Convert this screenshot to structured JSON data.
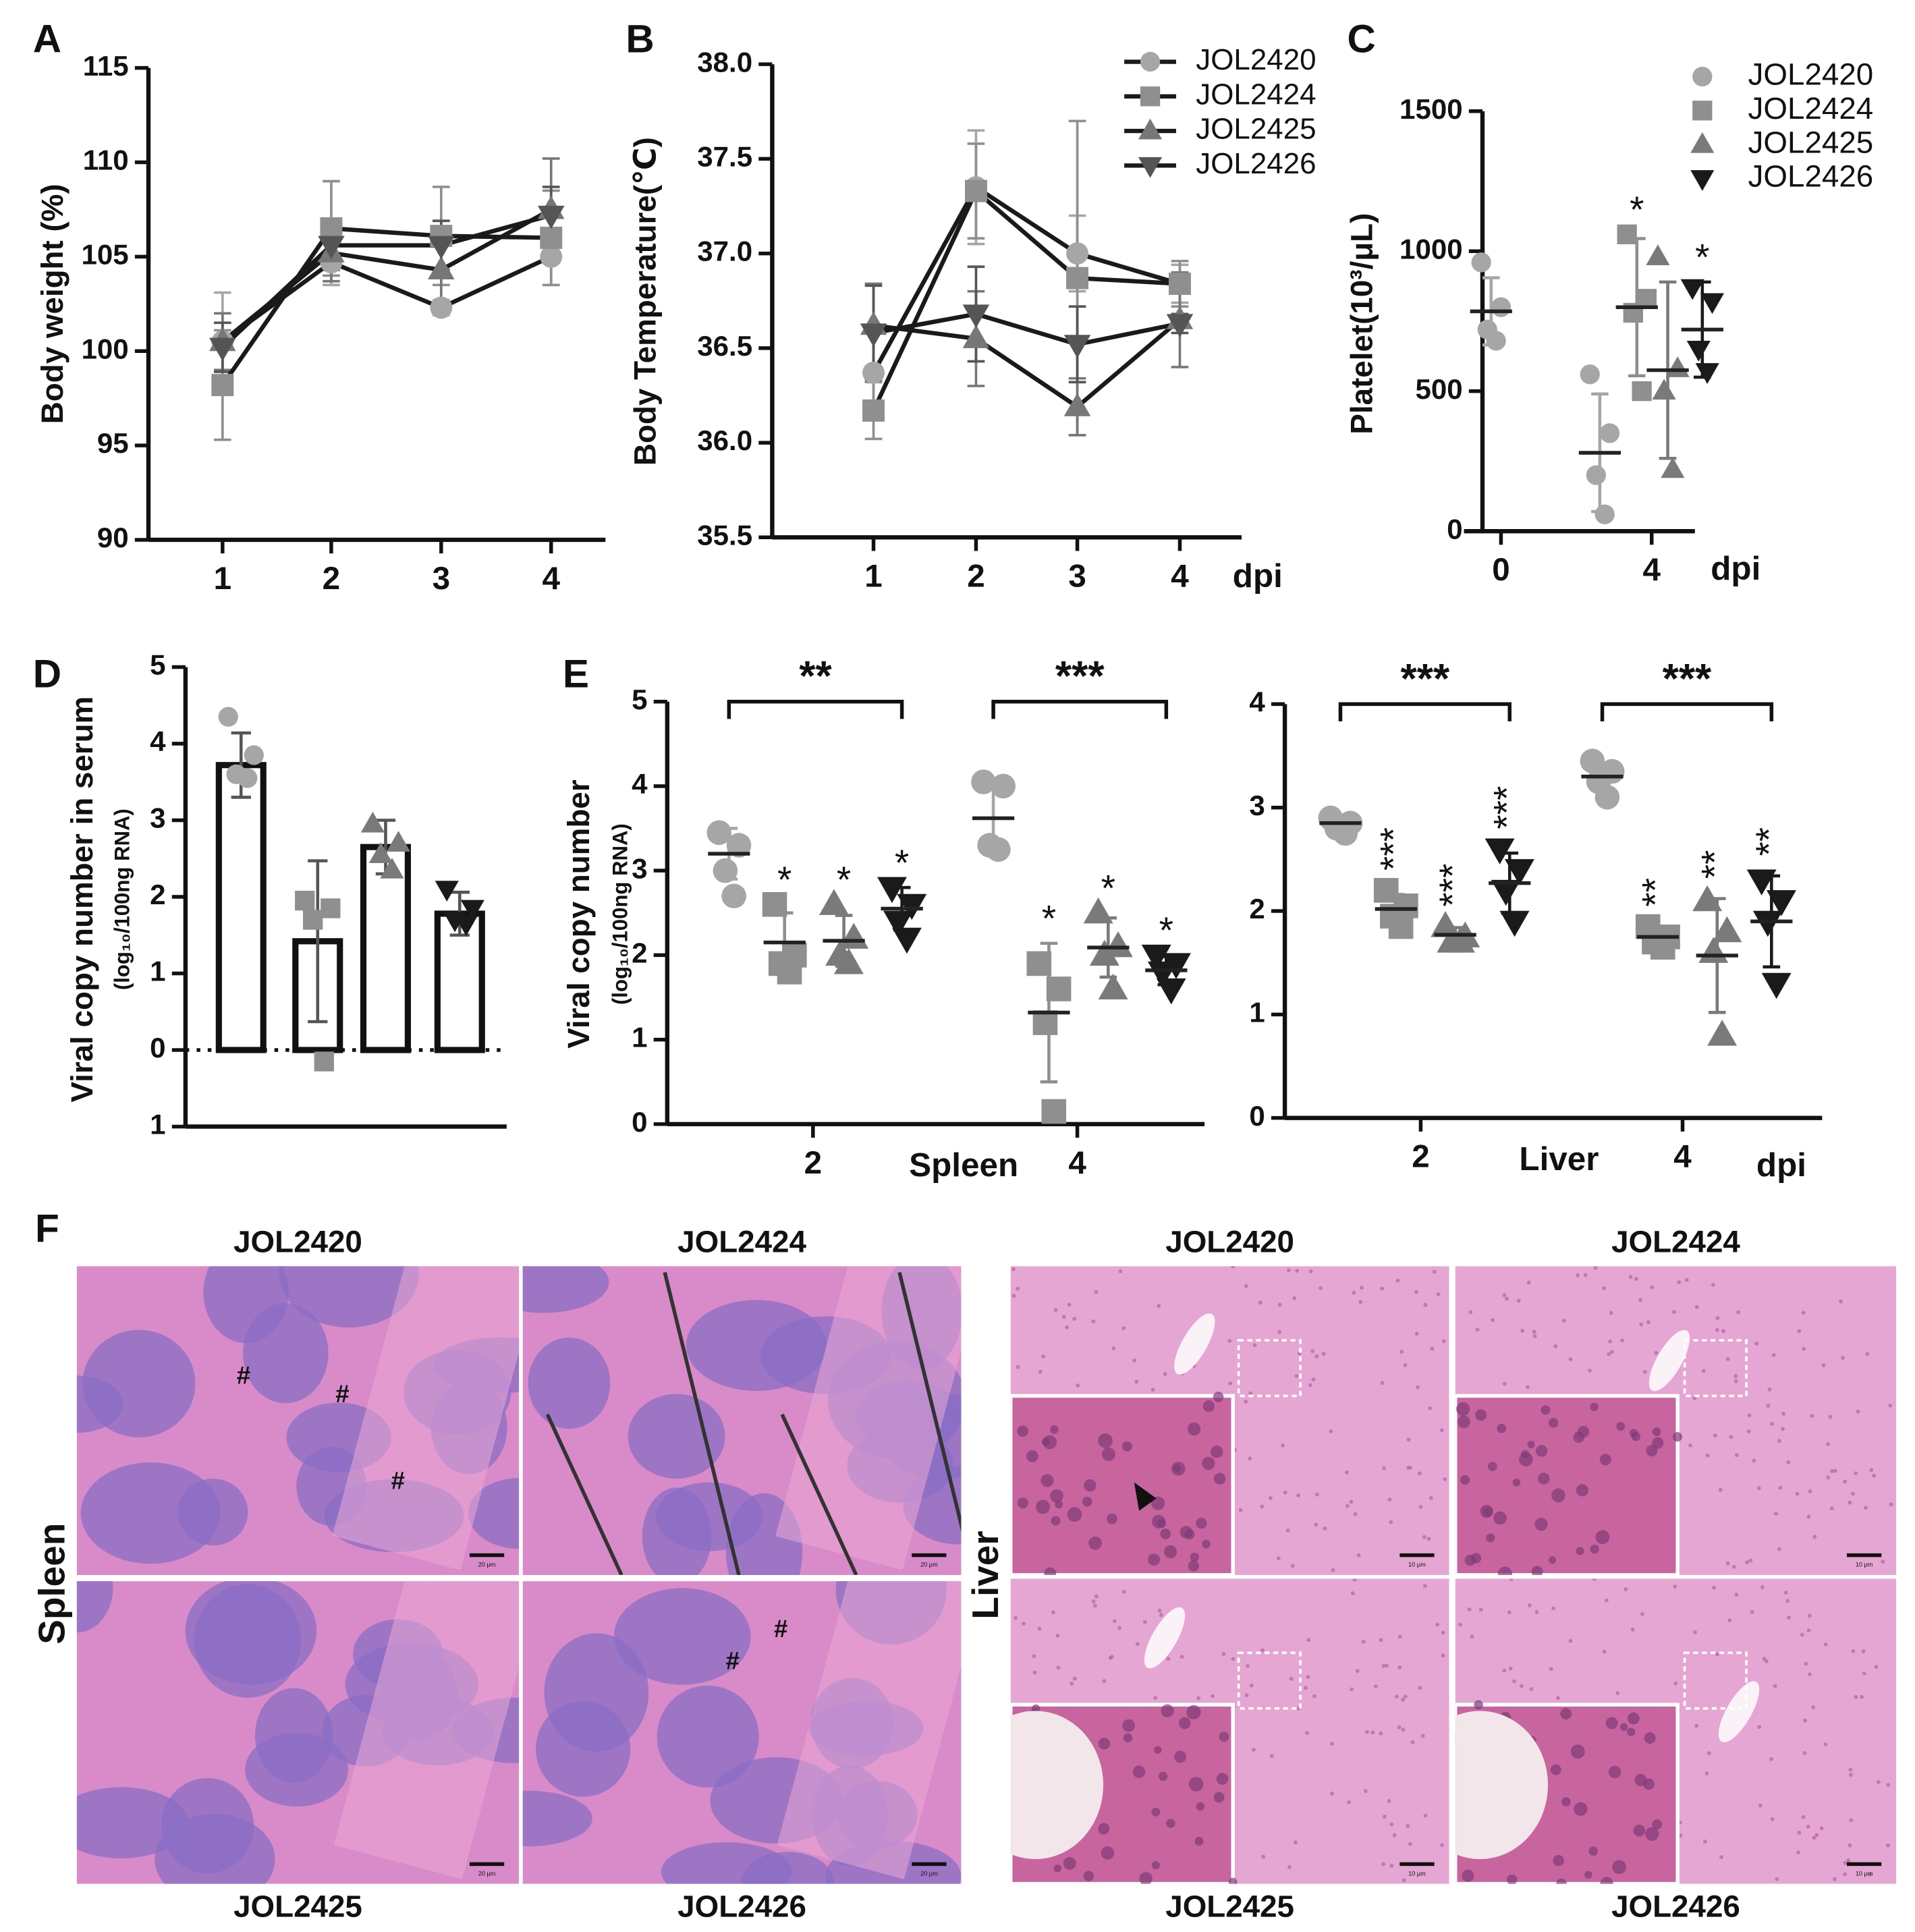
{
  "chart_data": [
    {
      "type": "line",
      "label": "A",
      "ylabel": "Body weight (%)",
      "categories": [
        "1",
        "2",
        "3",
        "4"
      ],
      "ylim": [
        90,
        115
      ],
      "yticks": [
        90,
        95,
        100,
        105,
        110,
        115
      ],
      "series": [
        {
          "color": "#a6a6a6",
          "marker": "circle",
          "values": [
            100.5,
            104.7,
            102.3,
            105.0
          ],
          "errors": [
            2.6,
            1.2,
            0.4,
            1.5
          ]
        },
        {
          "color": "#8f8f8f",
          "marker": "square",
          "values": [
            98.2,
            106.5,
            106.1,
            106.0
          ],
          "errors": [
            2.9,
            2.5,
            2.6,
            2.5
          ]
        },
        {
          "color": "#777777",
          "marker": "triangle",
          "values": [
            100.5,
            105.2,
            104.3,
            107.5
          ],
          "errors": [
            1.5,
            1.5,
            1.8,
            2.7
          ]
        },
        {
          "color": "#555555",
          "marker": "triangle-down",
          "values": [
            100.2,
            105.6,
            105.6,
            107.2
          ],
          "errors": [
            1.3,
            1.3,
            1.3,
            1.5
          ]
        }
      ]
    },
    {
      "type": "line",
      "label": "B",
      "ylabel": "Body Temperature(℃)",
      "xlabel": "dpi",
      "categories": [
        "1",
        "2",
        "3",
        "4"
      ],
      "ylim": [
        35.5,
        38.0
      ],
      "yticks": [
        35.5,
        {
          "value": 36,
          "label": "36.0"
        },
        36.5,
        {
          "value": 37,
          "label": "37.0"
        },
        37.5,
        {
          "value": 38,
          "label": "38.0"
        }
      ],
      "series": [
        {
          "name": "JOL2420",
          "color": "#a6a6a6",
          "marker": "circle",
          "values": [
            36.37,
            37.35,
            37.0,
            36.84
          ],
          "errors": [
            0.25,
            0.3,
            0.2,
            0.1
          ]
        },
        {
          "name": "JOL2424",
          "color": "#8f8f8f",
          "marker": "square",
          "values": [
            36.17,
            37.33,
            36.87,
            36.84
          ],
          "errors": [
            0.15,
            0.25,
            0.83,
            0.12
          ]
        },
        {
          "name": "JOL2425",
          "color": "#777777",
          "marker": "triangle",
          "values": [
            36.62,
            36.55,
            36.19,
            36.65
          ],
          "errors": [
            0.22,
            0.25,
            0.15,
            0.25
          ]
        },
        {
          "name": "JOL2426",
          "color": "#555555",
          "marker": "triangle-down",
          "values": [
            36.58,
            36.68,
            36.52,
            36.63
          ],
          "errors": [
            0.25,
            0.25,
            0.2,
            0.05
          ]
        }
      ]
    },
    {
      "type": "scatter",
      "label": "C",
      "ylabel": "Platelet(10³/μL)",
      "xlabel": "dpi",
      "categories": [
        "0",
        "4"
      ],
      "ylim": [
        0,
        1500
      ],
      "yticks": [
        0,
        500,
        1000,
        1500
      ],
      "series": [
        {
          "name": "JOL2420",
          "color": "#a6a6a6",
          "marker": "circle",
          "values": [
            [
              960,
              800,
              720,
              680
            ],
            [
              560,
              350,
              200,
              60
            ]
          ],
          "means": [
            785,
            280
          ],
          "sd": [
            120,
            210
          ]
        },
        {
          "name": "JOL2424",
          "color": "#8f8f8f",
          "marker": "square",
          "values": [
            null,
            [
              1060,
              830,
              780,
              500
            ]
          ],
          "means": [
            null,
            800
          ],
          "sd": [
            null,
            245
          ],
          "annotations": [
            null,
            "*"
          ]
        },
        {
          "name": "JOL2425",
          "color": "#7a7a7a",
          "marker": "triangle",
          "values": [
            null,
            [
              980,
              580,
              500,
              220
            ]
          ],
          "means": [
            null,
            575
          ],
          "sd": [
            null,
            315
          ]
        },
        {
          "name": "JOL2426",
          "color": "#1a1a1a",
          "marker": "triangle-down",
          "values": [
            null,
            [
              870,
              820,
              650,
              570
            ]
          ],
          "means": [
            null,
            720
          ],
          "sd": [
            null,
            170
          ],
          "annotations": [
            null,
            "*"
          ]
        }
      ]
    },
    {
      "type": "bar",
      "label": "D",
      "ylabel": "Viral copy number in serum",
      "ylabel_sub": "(log₁₀/100ng RNA)",
      "categories": [
        null,
        null,
        null,
        null
      ],
      "ylim": [
        -1,
        5
      ],
      "yticks": [
        {
          "value": -1,
          "label": "1"
        },
        0,
        1,
        2,
        3,
        4,
        5
      ],
      "values": [
        3.72,
        1.42,
        2.65,
        1.78
      ],
      "errors": [
        0.42,
        1.05,
        0.35,
        0.28
      ],
      "points": [
        [
          4.35,
          3.85,
          3.6,
          3.55
        ],
        [
          1.95,
          1.85,
          1.7,
          -0.15
        ],
        [
          2.95,
          2.7,
          2.55,
          2.35
        ],
        [
          2.1,
          1.85,
          1.7,
          1.65
        ]
      ],
      "colors": [
        "#a6a6a6",
        "#8f8f8f",
        "#7a7a7a",
        "#1a1a1a"
      ]
    },
    {
      "type": "scatter",
      "label": "E",
      "ylabel": "Viral copy number",
      "ylabel_sub": "(log₁₀/100ng RNA)",
      "xlabel": "Spleen",
      "categories": [
        "2",
        "4"
      ],
      "ylim": [
        0,
        5
      ],
      "yticks": [
        0,
        1,
        2,
        3,
        4,
        5
      ],
      "brackets": [
        "**",
        "***"
      ],
      "series": [
        {
          "color": "#a6a6a6",
          "marker": "circle",
          "values": [
            [
              3.45,
              3.3,
              3.0,
              2.7
            ],
            [
              4.05,
              4.0,
              3.3,
              3.25
            ]
          ],
          "means": [
            3.2,
            3.62
          ],
          "sd": [
            0.3,
            0.42
          ]
        },
        {
          "color": "#8f8f8f",
          "marker": "square",
          "values": [
            [
              2.6,
              2.0,
              1.9,
              1.8
            ],
            [
              1.9,
              1.6,
              1.2,
              0.15
            ]
          ],
          "means": [
            2.15,
            1.32
          ],
          "sd": [
            0.35,
            0.82
          ],
          "annotations": [
            "*",
            "*"
          ]
        },
        {
          "color": "#7a7a7a",
          "marker": "triangle",
          "values": [
            [
              2.6,
              2.2,
              2.0,
              1.9
            ],
            [
              2.5,
              2.1,
              2.0,
              1.6
            ]
          ],
          "means": [
            2.17,
            2.09
          ],
          "sd": [
            0.3,
            0.35
          ],
          "annotations": [
            "*",
            "*"
          ]
        },
        {
          "color": "#1a1a1a",
          "marker": "triangle-down",
          "values": [
            [
              2.8,
              2.6,
              2.4,
              2.2
            ],
            [
              2.0,
              1.9,
              1.8,
              1.6
            ]
          ],
          "means": [
            2.55,
            1.82
          ],
          "sd": [
            0.25,
            0.17
          ],
          "annotations": [
            "*",
            "*"
          ]
        }
      ]
    },
    {
      "type": "scatter",
      "xlabel": "Liver",
      "xlabel2": "dpi",
      "categories": [
        "2",
        "4"
      ],
      "ylim": [
        0,
        4
      ],
      "yticks": [
        0,
        1,
        2,
        3,
        4
      ],
      "brackets": [
        "***",
        "***"
      ],
      "series": [
        {
          "color": "#a6a6a6",
          "marker": "circle",
          "values": [
            [
              2.9,
              2.85,
              2.8,
              2.75
            ],
            [
              3.45,
              3.35,
              3.25,
              3.1
            ]
          ],
          "means": [
            2.85,
            3.3
          ],
          "sd": [
            0.05,
            0.13
          ]
        },
        {
          "color": "#8f8f8f",
          "marker": "square",
          "values": [
            [
              2.2,
              2.05,
              1.95,
              1.85
            ],
            [
              1.85,
              1.75,
              1.7,
              1.65
            ]
          ],
          "means": [
            2.02,
            1.75
          ],
          "sd": [
            0.14,
            0.08
          ],
          "annotations": [
            "***",
            "**"
          ]
        },
        {
          "color": "#7a7a7a",
          "marker": "triangle",
          "values": [
            [
              1.85,
              1.75,
              1.7,
              1.7
            ],
            [
              2.1,
              1.8,
              1.6,
              0.8
            ]
          ],
          "means": [
            1.77,
            1.57
          ],
          "sd": [
            0.07,
            0.55
          ],
          "annotations": [
            "***",
            "**"
          ]
        },
        {
          "color": "#1a1a1a",
          "marker": "triangle-down",
          "values": [
            [
              2.6,
              2.4,
              2.2,
              1.9
            ],
            [
              2.3,
              2.1,
              1.9,
              1.3
            ]
          ],
          "means": [
            2.27,
            1.9
          ],
          "sd": [
            0.29,
            0.44
          ],
          "annotations": [
            "***",
            "**"
          ]
        }
      ]
    }
  ],
  "histology": {
    "label": "F",
    "spleen": {
      "organ": "Spleen",
      "scale": "20 μm",
      "panels": [
        {
          "name": "JOL2420",
          "marks": [
            "#",
            "#",
            "#"
          ]
        },
        {
          "name": "JOL2424"
        },
        {
          "name": "JOL2425"
        },
        {
          "name": "JOL2426",
          "marks": [
            "#",
            "#"
          ]
        }
      ]
    },
    "liver": {
      "organ": "Liver",
      "scale": "10 μm",
      "panels": [
        {
          "name": "JOL2420"
        },
        {
          "name": "JOL2424"
        },
        {
          "name": "JOL2425"
        },
        {
          "name": "JOL2426"
        }
      ]
    }
  }
}
